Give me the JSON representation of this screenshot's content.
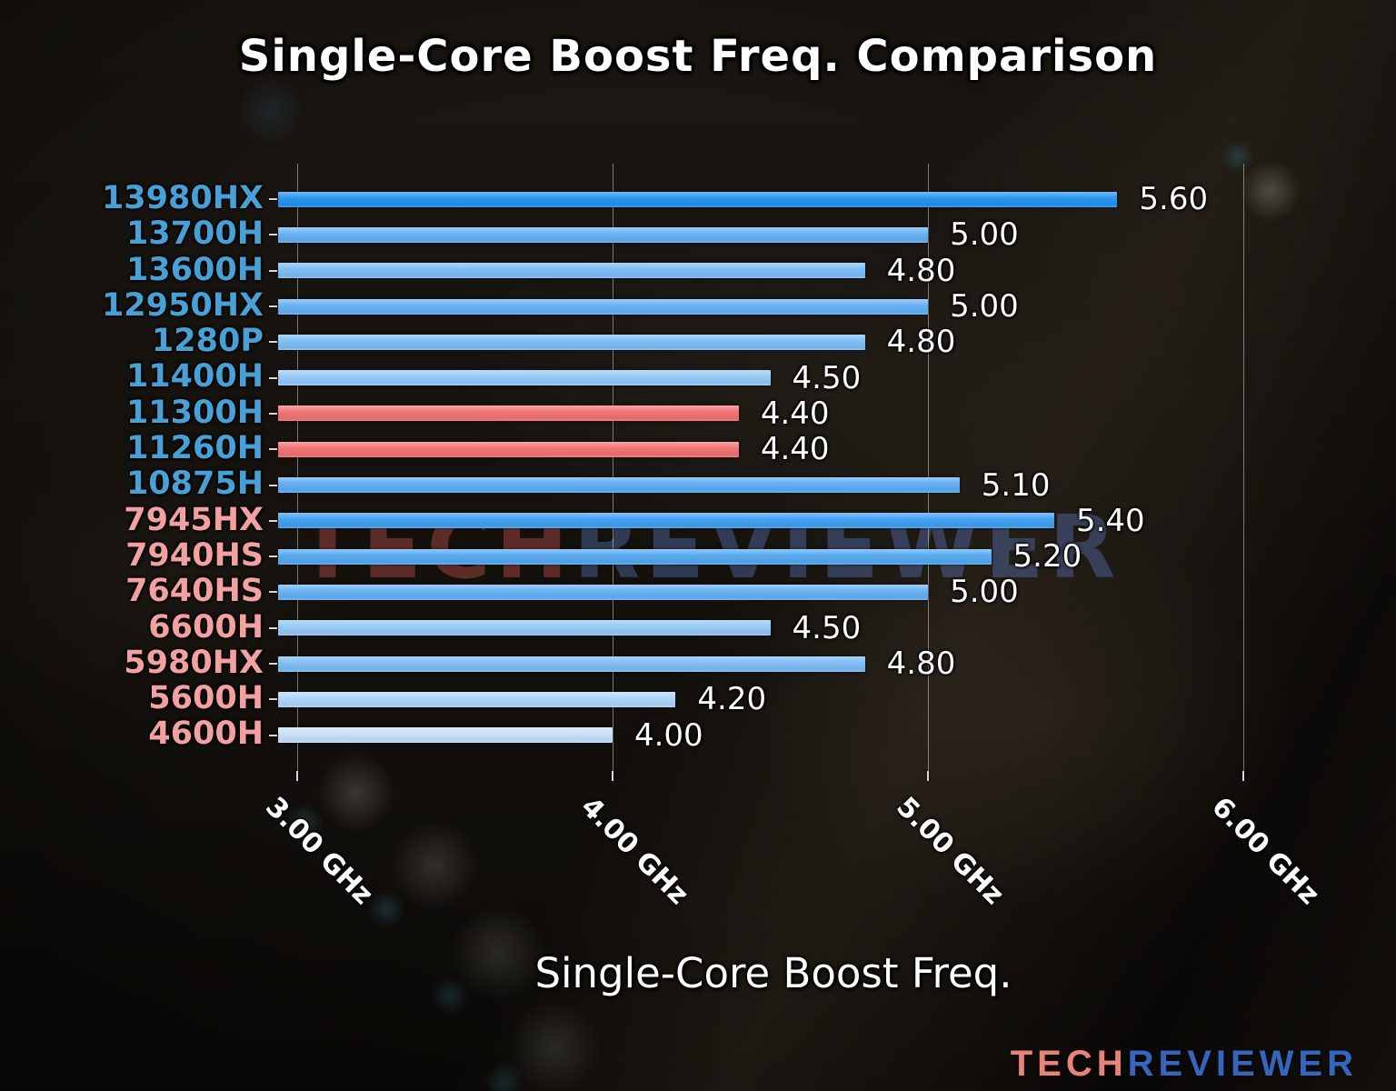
{
  "title": "Single-Core Boost Freq. Comparison",
  "watermark": {
    "part1": "TECH",
    "part2": "REVIEWER"
  },
  "brand_logo": {
    "part1": "TECH",
    "part2": "REVIEWER",
    "color1": "#e9837a",
    "color2": "#3566bd"
  },
  "colors": {
    "intel_label": "#47a0d6",
    "amd_label": "#f2a0a0",
    "highlight_bar_red": "#f17070",
    "value_text": "#ffffff",
    "gridline": "rgba(205,205,205,0.55)"
  },
  "chart_data": {
    "type": "bar",
    "orientation": "horizontal",
    "title": "Single-Core Boost Freq. Comparison",
    "xlabel": "Single-Core Boost Freq.",
    "ylabel": "",
    "grid": true,
    "legend": "none",
    "axis": {
      "min": 2.94,
      "max": 6.08,
      "unit": "GHz",
      "gridlines": [
        3.0,
        4.0,
        5.0,
        6.0
      ],
      "tick_labels": [
        "3.00 GHz",
        "4.00 GHz",
        "5.00 GHz",
        "6.00 GHz"
      ]
    },
    "categories": [
      "13980HX",
      "13700H",
      "13600H",
      "12950HX",
      "1280P",
      "11400H",
      "11300H",
      "11260H",
      "10875H",
      "7945HX",
      "7940HS",
      "7640HS",
      "6600H",
      "5980HX",
      "5600H",
      "4600H"
    ],
    "values": [
      5.6,
      5.0,
      4.8,
      5.0,
      4.8,
      4.5,
      4.4,
      4.4,
      5.1,
      5.4,
      5.2,
      5.0,
      4.5,
      4.8,
      4.2,
      4.0
    ],
    "bars": [
      {
        "label": "13980HX",
        "value": 5.6,
        "value_label": "5.60",
        "bar_color": "#2191ee",
        "label_color": "#47a0d6"
      },
      {
        "label": "13700H",
        "value": 5.0,
        "value_label": "5.00",
        "bar_color": "#63aff3",
        "label_color": "#47a0d6"
      },
      {
        "label": "13600H",
        "value": 4.8,
        "value_label": "4.80",
        "bar_color": "#7abcf4",
        "label_color": "#47a0d6"
      },
      {
        "label": "12950HX",
        "value": 5.0,
        "value_label": "5.00",
        "bar_color": "#63aff3",
        "label_color": "#47a0d6"
      },
      {
        "label": "1280P",
        "value": 4.8,
        "value_label": "4.80",
        "bar_color": "#7abcf4",
        "label_color": "#47a0d6"
      },
      {
        "label": "11400H",
        "value": 4.5,
        "value_label": "4.50",
        "bar_color": "#92c8f6",
        "label_color": "#47a0d6"
      },
      {
        "label": "11300H",
        "value": 4.4,
        "value_label": "4.40",
        "bar_color": "#f17070",
        "label_color": "#47a0d6"
      },
      {
        "label": "11260H",
        "value": 4.4,
        "value_label": "4.40",
        "bar_color": "#f17070",
        "label_color": "#47a0d6"
      },
      {
        "label": "10875H",
        "value": 5.1,
        "value_label": "5.10",
        "bar_color": "#5aabf2",
        "label_color": "#47a0d6"
      },
      {
        "label": "7945HX",
        "value": 5.4,
        "value_label": "5.40",
        "bar_color": "#3e9ff0",
        "label_color": "#f2a0a0"
      },
      {
        "label": "7940HS",
        "value": 5.2,
        "value_label": "5.20",
        "bar_color": "#52a7f1",
        "label_color": "#f2a0a0"
      },
      {
        "label": "7640HS",
        "value": 5.0,
        "value_label": "5.00",
        "bar_color": "#63aff3",
        "label_color": "#f2a0a0"
      },
      {
        "label": "6600H",
        "value": 4.5,
        "value_label": "4.50",
        "bar_color": "#92c8f6",
        "label_color": "#f2a0a0"
      },
      {
        "label": "5980HX",
        "value": 4.8,
        "value_label": "4.80",
        "bar_color": "#7abcf4",
        "label_color": "#f2a0a0"
      },
      {
        "label": "5600H",
        "value": 4.2,
        "value_label": "4.20",
        "bar_color": "#aed4f8",
        "label_color": "#f2a0a0"
      },
      {
        "label": "4600H",
        "value": 4.0,
        "value_label": "4.00",
        "bar_color": "#c6e0f9",
        "label_color": "#f2a0a0"
      }
    ]
  }
}
